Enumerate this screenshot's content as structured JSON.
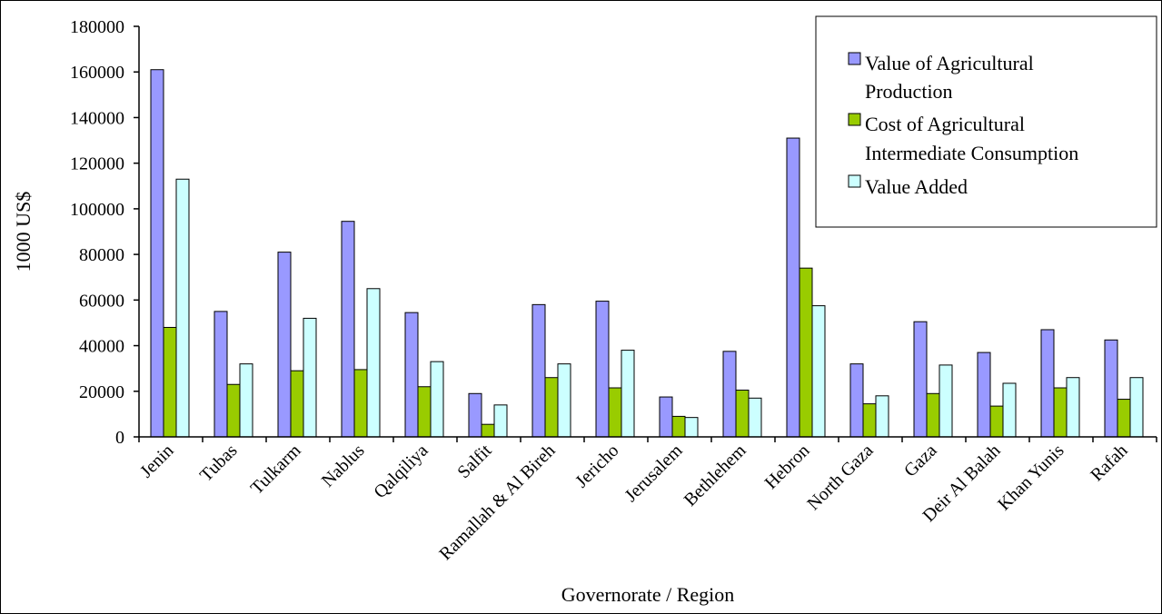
{
  "chart_data": {
    "type": "bar",
    "xlabel": "Governorate / Region",
    "ylabel": "1000 US$",
    "ylim": [
      0,
      180000
    ],
    "yticks": [
      0,
      20000,
      40000,
      60000,
      80000,
      100000,
      120000,
      140000,
      160000,
      180000
    ],
    "grid": false,
    "legend_position": "top-right",
    "categories": [
      "Jenin",
      "Tubas",
      "Tulkarm",
      "Nablus",
      "Qalqiliya",
      "Salfit",
      "Ramallah & Al Bireh",
      "Jericho",
      "Jerusalem",
      "Bethlehem",
      "Hebron",
      "North Gaza",
      "Gaza",
      "Deir Al Balah",
      "Khan Yunis",
      "Rafah"
    ],
    "series": [
      {
        "name": "Value of Agricultural Production",
        "color": "#9999ff",
        "values": [
          161000,
          55000,
          81000,
          94500,
          54500,
          19000,
          58000,
          59500,
          17500,
          37500,
          131000,
          32000,
          50500,
          37000,
          47000,
          42500
        ]
      },
      {
        "name": "Cost of Agricultural Intermediate Consumption",
        "color": "#99cc00",
        "values": [
          48000,
          23000,
          29000,
          29500,
          22000,
          5500,
          26000,
          21500,
          9000,
          20500,
          74000,
          14500,
          19000,
          13500,
          21500,
          16500
        ]
      },
      {
        "name": "Value Added",
        "color": "#ccffff",
        "values": [
          113000,
          32000,
          52000,
          65000,
          33000,
          14000,
          32000,
          38000,
          8500,
          17000,
          57500,
          18000,
          31500,
          23500,
          26000,
          26000
        ]
      }
    ]
  }
}
